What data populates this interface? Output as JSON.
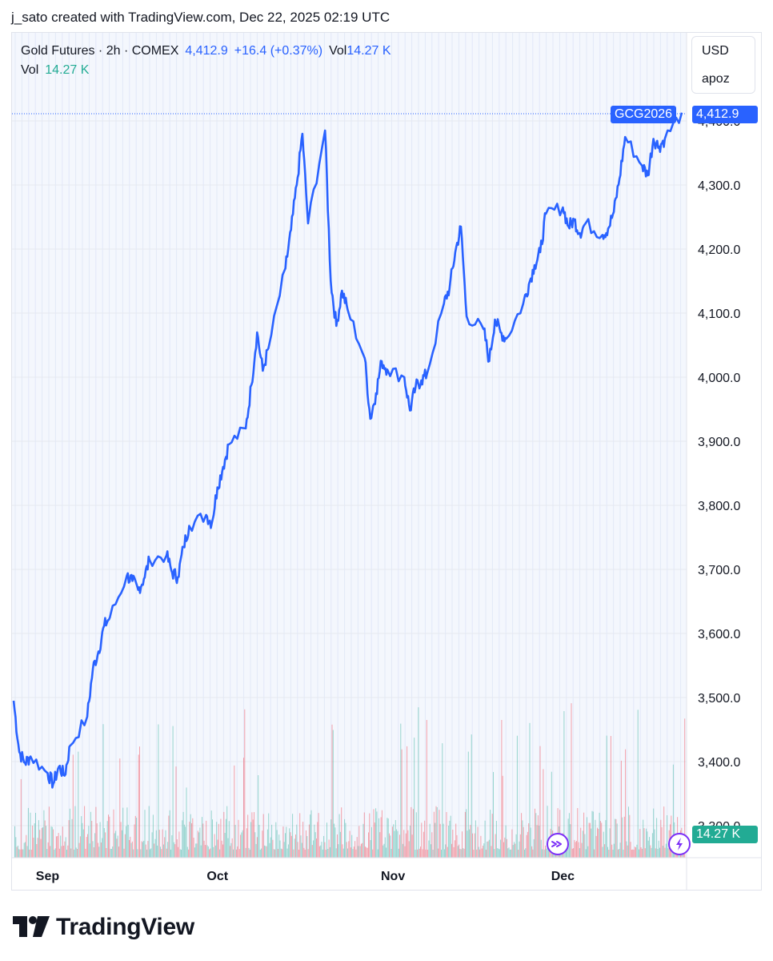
{
  "header": {
    "credit": "j_sato created with TradingView.com, Dec 22, 2025 02:19 UTC"
  },
  "legend": {
    "symbol": "Gold Futures · 2h · COMEX",
    "price": "4,412.9",
    "change": "+16.4 (+0.37%)",
    "vol_label": "Vol",
    "vol_value": "14.27 K",
    "vol2_label": "Vol",
    "vol2_value": "14.27 K"
  },
  "currency_box": {
    "currency": "USD",
    "scale_mode": "apoz"
  },
  "price_tags": {
    "symbol": "GCG2026",
    "last_price": "4,412.9",
    "volume": "14.27 K"
  },
  "footer": {
    "brand": "TradingView"
  },
  "colors": {
    "line": "#2962ff",
    "vol_up": "#22ab94",
    "vol_down": "#f23645",
    "grid_h": "#e6e9f0",
    "grid_v": "#e2e8f8",
    "chart_bg": "#f4f7fd"
  },
  "icons": [
    "go-to-realtime-icon",
    "flash-icon",
    "tradingview-logo-icon"
  ],
  "chart_data": {
    "type": "line",
    "title": "Gold Futures · 2h · COMEX",
    "x_range": [
      "2025-08-26",
      "2025-12-22"
    ],
    "xticks": [
      {
        "label": "Sep",
        "date": "2025-09-01"
      },
      {
        "label": "Oct",
        "date": "2025-10-01"
      },
      {
        "label": "Nov",
        "date": "2025-11-01"
      },
      {
        "label": "Dec",
        "date": "2025-12-01"
      }
    ],
    "ylim": [
      3300,
      4425
    ],
    "yticks": [
      3300,
      3400,
      3500,
      3600,
      3700,
      3800,
      3900,
      4000,
      4100,
      4200,
      4300,
      4400
    ],
    "ytick_labels": [
      "3,300.0",
      "3,400.0",
      "3,500.0",
      "3,600.0",
      "3,700.0",
      "3,800.0",
      "3,900.0",
      "4,000.0",
      "4,100.0",
      "4,200.0",
      "4,300.0",
      "4,400.0"
    ],
    "last_value": 4412.9,
    "series": [
      {
        "points": [
          [
            "2025-08-26",
            3495
          ],
          [
            "2025-08-27",
            3415
          ],
          [
            "2025-08-28",
            3398
          ],
          [
            "2025-08-29",
            3408
          ],
          [
            "2025-09-01",
            3382
          ],
          [
            "2025-09-02",
            3365
          ],
          [
            "2025-09-03",
            3392
          ],
          [
            "2025-09-04",
            3378
          ],
          [
            "2025-09-05",
            3425
          ],
          [
            "2025-09-08",
            3470
          ],
          [
            "2025-09-09",
            3545
          ],
          [
            "2025-09-10",
            3572
          ],
          [
            "2025-09-11",
            3612
          ],
          [
            "2025-09-12",
            3625
          ],
          [
            "2025-09-15",
            3690
          ],
          [
            "2025-09-16",
            3682
          ],
          [
            "2025-09-17",
            3668
          ],
          [
            "2025-09-18",
            3685
          ],
          [
            "2025-09-19",
            3715
          ],
          [
            "2025-09-22",
            3722
          ],
          [
            "2025-09-23",
            3695
          ],
          [
            "2025-09-24",
            3688
          ],
          [
            "2025-09-25",
            3735
          ],
          [
            "2025-09-26",
            3768
          ],
          [
            "2025-09-29",
            3785
          ],
          [
            "2025-09-30",
            3772
          ],
          [
            "2025-10-01",
            3828
          ],
          [
            "2025-10-02",
            3860
          ],
          [
            "2025-10-03",
            3895
          ],
          [
            "2025-10-06",
            3920
          ],
          [
            "2025-10-07",
            3988
          ],
          [
            "2025-10-08",
            4070
          ],
          [
            "2025-10-09",
            4010
          ],
          [
            "2025-10-10",
            4045
          ],
          [
            "2025-10-13",
            4170
          ],
          [
            "2025-10-14",
            4230
          ],
          [
            "2025-10-15",
            4300
          ],
          [
            "2025-10-16",
            4380
          ],
          [
            "2025-10-17",
            4240
          ],
          [
            "2025-10-20",
            4385
          ],
          [
            "2025-10-21",
            4150
          ],
          [
            "2025-10-22",
            4080
          ],
          [
            "2025-10-23",
            4135
          ],
          [
            "2025-10-24",
            4105
          ],
          [
            "2025-10-27",
            4030
          ],
          [
            "2025-10-28",
            3935
          ],
          [
            "2025-10-29",
            3975
          ],
          [
            "2025-10-30",
            4025
          ],
          [
            "2025-10-31",
            4012
          ],
          [
            "2025-11-03",
            4000
          ],
          [
            "2025-11-04",
            3948
          ],
          [
            "2025-11-05",
            3985
          ],
          [
            "2025-11-06",
            3995
          ],
          [
            "2025-11-07",
            4005
          ],
          [
            "2025-11-10",
            4115
          ],
          [
            "2025-11-11",
            4140
          ],
          [
            "2025-11-12",
            4195
          ],
          [
            "2025-11-13",
            4235
          ],
          [
            "2025-11-14",
            4095
          ],
          [
            "2025-11-17",
            4075
          ],
          [
            "2025-11-18",
            4025
          ],
          [
            "2025-11-19",
            4090
          ],
          [
            "2025-11-20",
            4070
          ],
          [
            "2025-11-21",
            4060
          ],
          [
            "2025-11-24",
            4115
          ],
          [
            "2025-11-25",
            4145
          ],
          [
            "2025-11-26",
            4175
          ],
          [
            "2025-11-27",
            4195
          ],
          [
            "2025-11-28",
            4255
          ],
          [
            "2025-12-01",
            4265
          ],
          [
            "2025-12-02",
            4235
          ],
          [
            "2025-12-03",
            4245
          ],
          [
            "2025-12-04",
            4225
          ],
          [
            "2025-12-05",
            4240
          ],
          [
            "2025-12-08",
            4222
          ],
          [
            "2025-12-09",
            4232
          ],
          [
            "2025-12-10",
            4258
          ],
          [
            "2025-12-11",
            4310
          ],
          [
            "2025-12-12",
            4375
          ],
          [
            "2025-12-15",
            4330
          ],
          [
            "2025-12-16",
            4315
          ],
          [
            "2025-12-17",
            4372
          ],
          [
            "2025-12-18",
            4360
          ],
          [
            "2025-12-19",
            4372
          ],
          [
            "2025-12-22",
            4412.9
          ]
        ]
      }
    ]
  }
}
